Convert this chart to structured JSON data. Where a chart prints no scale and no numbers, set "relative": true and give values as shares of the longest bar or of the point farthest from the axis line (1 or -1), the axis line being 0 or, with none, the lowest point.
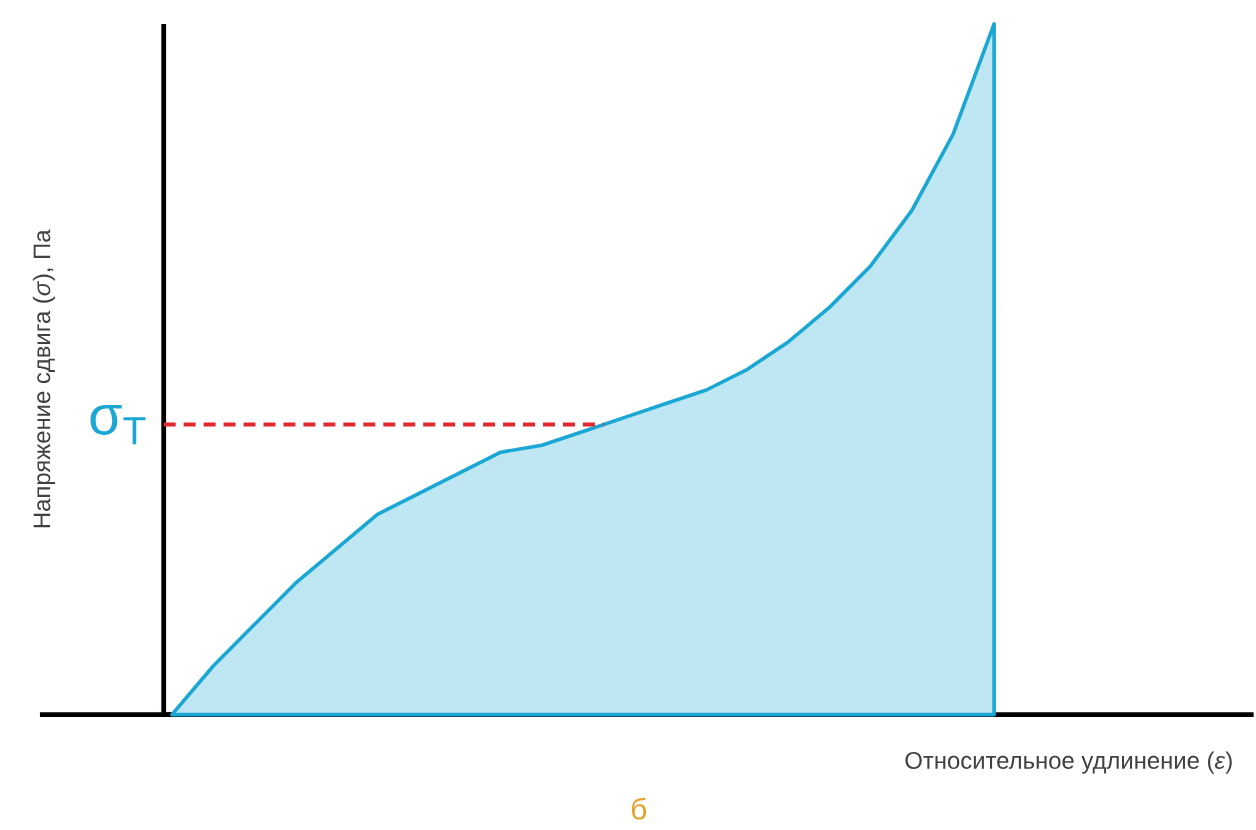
{
  "chart_data": {
    "type": "area",
    "relative": true,
    "xlabel": "Относительное удлинение (*ε*)",
    "ylabel": "Напряжение сдвига (*σ*), Па",
    "categories": [
      null,
      null,
      null,
      null,
      null,
      null,
      null,
      null,
      null,
      null,
      null,
      null,
      null,
      null,
      null,
      null,
      null,
      null,
      null,
      null,
      null
    ],
    "series": [
      {
        "color": "#1aa7d4",
        "values": [
          0,
          0.07,
          0.13,
          0.19,
          0.24,
          0.29,
          0.32,
          0.35,
          0.38,
          0.39,
          0.41,
          0.43,
          0.45,
          0.47,
          0.5,
          0.54,
          0.59,
          0.65,
          0.73,
          0.84,
          1
        ]
      }
    ],
    "ref_lines": [
      {
        "axis": "y",
        "value": 0.42,
        "label": "σ$_{T}$",
        "color": "#e0282e",
        "line_style": "dashed"
      }
    ],
    "annotations": [
      "б"
    ]
  }
}
